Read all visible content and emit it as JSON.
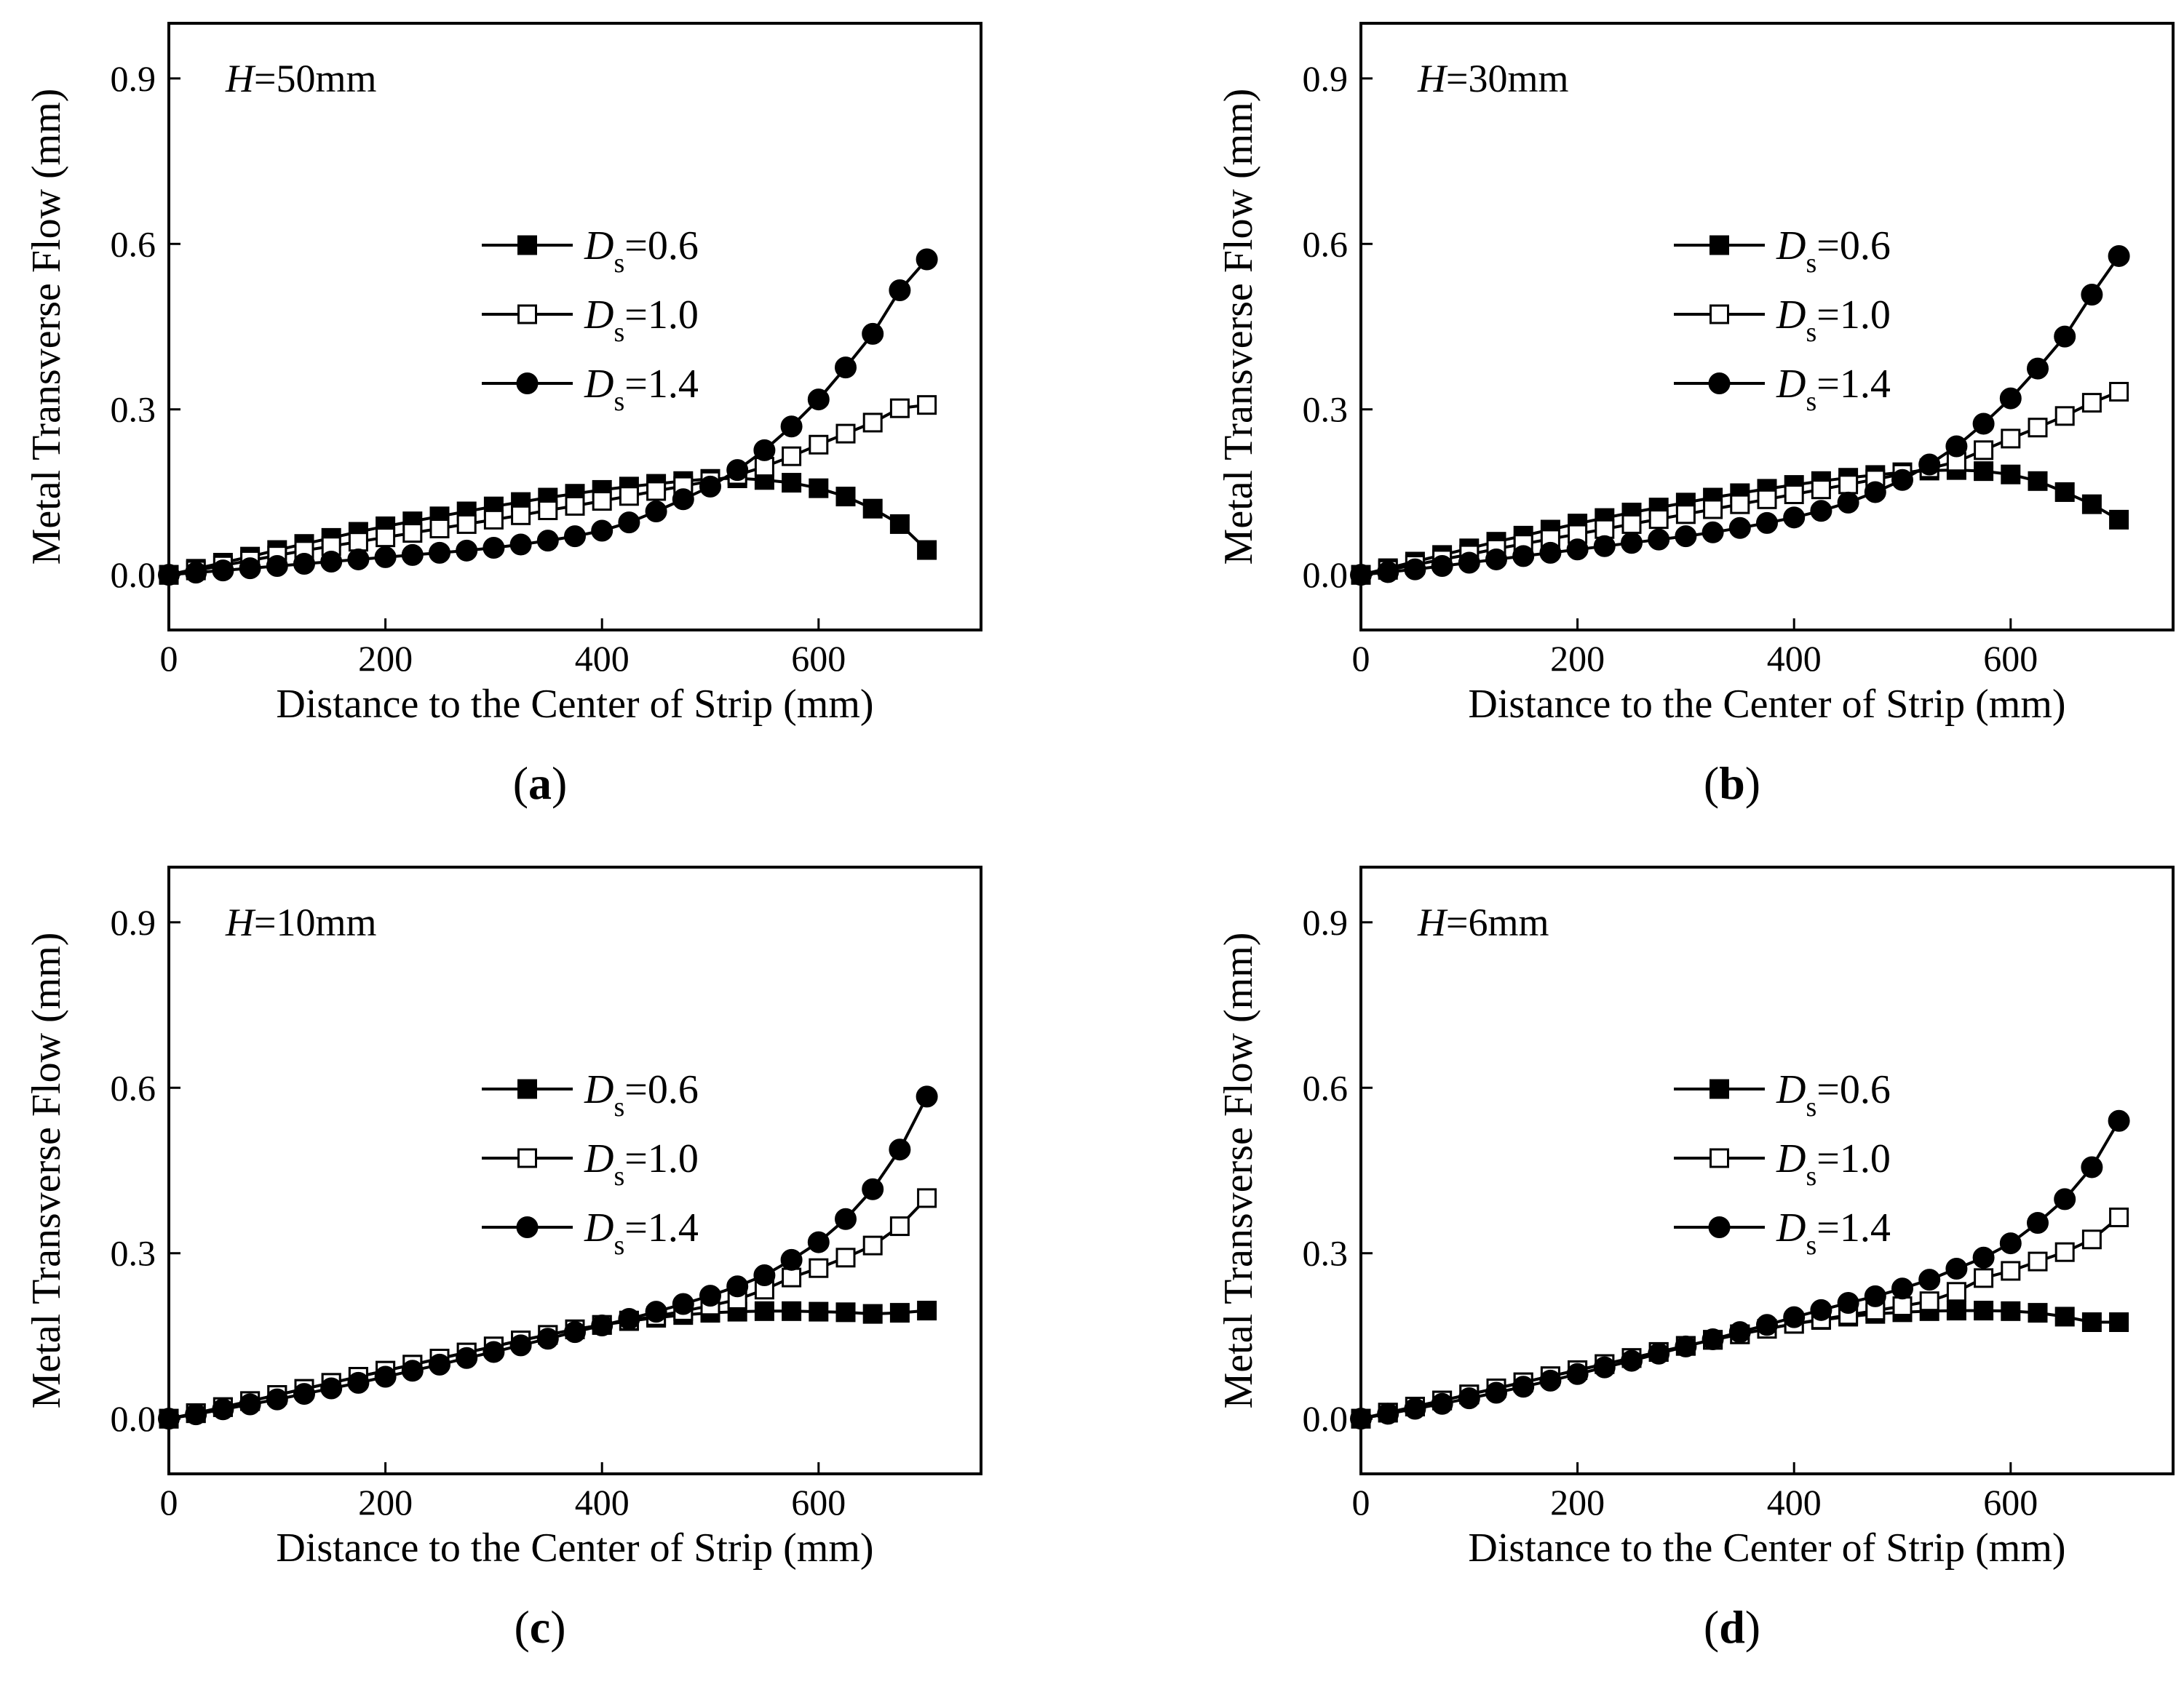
{
  "figure": {
    "x_label": "Distance to the Center of Strip (mm)",
    "y_label": "Metal Transverse Flow (mm)",
    "colors": {
      "ink": "#000000",
      "open_fill": "#ffffff"
    }
  },
  "chart_data": [
    {
      "type": "line",
      "panel_label": "a",
      "annotation": {
        "var": "H",
        "eq": "=50mm"
      },
      "xlabel": "Distance to the Center of Strip (mm)",
      "ylabel": "Metal Transverse Flow (mm)",
      "xlim": [
        0,
        750
      ],
      "ylim": [
        -0.1,
        1.0
      ],
      "xticks": [
        0,
        200,
        400,
        600
      ],
      "yticks": [
        0.0,
        0.3,
        0.6,
        0.9
      ],
      "x": [
        0,
        25,
        50,
        75,
        100,
        125,
        150,
        175,
        200,
        225,
        250,
        275,
        300,
        325,
        350,
        375,
        400,
        425,
        450,
        475,
        500,
        525,
        550,
        575,
        600,
        625,
        650,
        675,
        700
      ],
      "series": [
        {
          "name": "Ds=0.6",
          "sym": "D",
          "sub": "s",
          "val": "=0.6",
          "marker": "square-filled",
          "values": [
            0,
            0.011,
            0.022,
            0.033,
            0.045,
            0.056,
            0.067,
            0.078,
            0.088,
            0.097,
            0.106,
            0.115,
            0.124,
            0.132,
            0.14,
            0.147,
            0.154,
            0.16,
            0.165,
            0.17,
            0.174,
            0.175,
            0.172,
            0.167,
            0.157,
            0.142,
            0.12,
            0.092,
            0.045
          ]
        },
        {
          "name": "Ds=1.0",
          "sym": "D",
          "sub": "s",
          "val": "=1.0",
          "marker": "square-open",
          "values": [
            0,
            0.008,
            0.017,
            0.026,
            0.035,
            0.044,
            0.052,
            0.06,
            0.068,
            0.076,
            0.084,
            0.092,
            0.1,
            0.108,
            0.117,
            0.125,
            0.134,
            0.143,
            0.152,
            0.161,
            0.17,
            0.181,
            0.196,
            0.215,
            0.236,
            0.256,
            0.276,
            0.302,
            0.308
          ]
        },
        {
          "name": "Ds=1.4",
          "sym": "D",
          "sub": "s",
          "val": "=1.4",
          "marker": "circle-filled",
          "values": [
            0,
            0.004,
            0.008,
            0.012,
            0.016,
            0.02,
            0.024,
            0.028,
            0.032,
            0.036,
            0.04,
            0.044,
            0.049,
            0.055,
            0.062,
            0.07,
            0.08,
            0.095,
            0.115,
            0.137,
            0.16,
            0.19,
            0.226,
            0.269,
            0.318,
            0.376,
            0.437,
            0.516,
            0.572
          ]
        }
      ]
    },
    {
      "type": "line",
      "panel_label": "b",
      "annotation": {
        "var": "H",
        "eq": "=30mm"
      },
      "xlabel": "Distance to the Center of Strip (mm)",
      "ylabel": "Metal Transverse Flow (mm)",
      "xlim": [
        0,
        750
      ],
      "ylim": [
        -0.1,
        1.0
      ],
      "xticks": [
        0,
        200,
        400,
        600
      ],
      "yticks": [
        0.0,
        0.3,
        0.6,
        0.9
      ],
      "x": [
        0,
        25,
        50,
        75,
        100,
        125,
        150,
        175,
        200,
        225,
        250,
        275,
        300,
        325,
        350,
        375,
        400,
        425,
        450,
        475,
        500,
        525,
        550,
        575,
        600,
        625,
        650,
        675,
        700
      ],
      "series": [
        {
          "name": "Ds=0.6",
          "sym": "D",
          "sub": "s",
          "val": "=0.6",
          "marker": "square-filled",
          "values": [
            0,
            0.012,
            0.024,
            0.036,
            0.048,
            0.06,
            0.071,
            0.082,
            0.093,
            0.103,
            0.113,
            0.122,
            0.131,
            0.14,
            0.148,
            0.156,
            0.163,
            0.17,
            0.176,
            0.181,
            0.186,
            0.189,
            0.19,
            0.188,
            0.182,
            0.17,
            0.15,
            0.128,
            0.1
          ]
        },
        {
          "name": "Ds=1.0",
          "sym": "D",
          "sub": "s",
          "val": "=1.0",
          "marker": "square-open",
          "values": [
            0,
            0.009,
            0.018,
            0.028,
            0.037,
            0.047,
            0.056,
            0.065,
            0.074,
            0.083,
            0.092,
            0.101,
            0.11,
            0.119,
            0.128,
            0.137,
            0.146,
            0.155,
            0.164,
            0.173,
            0.183,
            0.193,
            0.205,
            0.226,
            0.247,
            0.267,
            0.288,
            0.312,
            0.332
          ]
        },
        {
          "name": "Ds=1.4",
          "sym": "D",
          "sub": "s",
          "val": "=1.4",
          "marker": "circle-filled",
          "values": [
            0,
            0.005,
            0.01,
            0.016,
            0.022,
            0.028,
            0.034,
            0.04,
            0.046,
            0.052,
            0.058,
            0.064,
            0.07,
            0.077,
            0.085,
            0.094,
            0.104,
            0.116,
            0.131,
            0.15,
            0.172,
            0.2,
            0.233,
            0.274,
            0.32,
            0.374,
            0.432,
            0.508,
            0.578
          ]
        }
      ]
    },
    {
      "type": "line",
      "panel_label": "c",
      "annotation": {
        "var": "H",
        "eq": "=10mm"
      },
      "xlabel": "Distance to the Center of Strip (mm)",
      "ylabel": "Metal Transverse Flow (mm)",
      "xlim": [
        0,
        750
      ],
      "ylim": [
        -0.1,
        1.0
      ],
      "xticks": [
        0,
        200,
        400,
        600
      ],
      "yticks": [
        0.0,
        0.3,
        0.6,
        0.9
      ],
      "x": [
        0,
        25,
        50,
        75,
        100,
        125,
        150,
        175,
        200,
        225,
        250,
        275,
        300,
        325,
        350,
        375,
        400,
        425,
        450,
        475,
        500,
        525,
        550,
        575,
        600,
        625,
        650,
        675,
        700
      ],
      "series": [
        {
          "name": "Ds=0.6",
          "sym": "D",
          "sub": "s",
          "val": "=0.6",
          "marker": "square-filled",
          "values": [
            0,
            0.01,
            0.021,
            0.032,
            0.043,
            0.054,
            0.065,
            0.076,
            0.087,
            0.098,
            0.109,
            0.12,
            0.131,
            0.142,
            0.152,
            0.162,
            0.17,
            0.177,
            0.183,
            0.188,
            0.192,
            0.194,
            0.195,
            0.195,
            0.194,
            0.193,
            0.19,
            0.192,
            0.196
          ]
        },
        {
          "name": "Ds=1.0",
          "sym": "D",
          "sub": "s",
          "val": "=1.0",
          "marker": "square-open",
          "values": [
            0,
            0.01,
            0.021,
            0.032,
            0.043,
            0.054,
            0.065,
            0.076,
            0.087,
            0.098,
            0.109,
            0.12,
            0.131,
            0.142,
            0.152,
            0.162,
            0.17,
            0.178,
            0.186,
            0.195,
            0.205,
            0.216,
            0.234,
            0.256,
            0.273,
            0.292,
            0.314,
            0.349,
            0.4
          ]
        },
        {
          "name": "Ds=1.4",
          "sym": "D",
          "sub": "s",
          "val": "=1.4",
          "marker": "circle-filled",
          "values": [
            0,
            0.008,
            0.017,
            0.026,
            0.035,
            0.045,
            0.055,
            0.065,
            0.076,
            0.087,
            0.098,
            0.11,
            0.121,
            0.133,
            0.145,
            0.157,
            0.169,
            0.181,
            0.194,
            0.208,
            0.223,
            0.24,
            0.26,
            0.288,
            0.32,
            0.362,
            0.416,
            0.488,
            0.584
          ]
        }
      ]
    },
    {
      "type": "line",
      "panel_label": "d",
      "annotation": {
        "var": "H",
        "eq": "=6mm"
      },
      "xlabel": "Distance to the Center of Strip (mm)",
      "ylabel": "Metal Transverse Flow (mm)",
      "xlim": [
        0,
        750
      ],
      "ylim": [
        -0.1,
        1.0
      ],
      "xticks": [
        0,
        200,
        400,
        600
      ],
      "yticks": [
        0.0,
        0.3,
        0.6,
        0.9
      ],
      "x": [
        0,
        25,
        50,
        75,
        100,
        125,
        150,
        175,
        200,
        225,
        250,
        275,
        300,
        325,
        350,
        375,
        400,
        425,
        450,
        475,
        500,
        525,
        550,
        575,
        600,
        625,
        650,
        675,
        700
      ],
      "series": [
        {
          "name": "Ds=0.6",
          "sym": "D",
          "sub": "s",
          "val": "=0.6",
          "marker": "square-filled",
          "values": [
            0,
            0.011,
            0.022,
            0.033,
            0.044,
            0.055,
            0.066,
            0.077,
            0.088,
            0.099,
            0.11,
            0.121,
            0.132,
            0.143,
            0.153,
            0.163,
            0.172,
            0.179,
            0.185,
            0.19,
            0.193,
            0.195,
            0.196,
            0.196,
            0.195,
            0.192,
            0.185,
            0.175,
            0.175
          ]
        },
        {
          "name": "Ds=1.0",
          "sym": "D",
          "sub": "s",
          "val": "=1.0",
          "marker": "square-open",
          "values": [
            0,
            0.011,
            0.022,
            0.033,
            0.044,
            0.055,
            0.066,
            0.077,
            0.088,
            0.099,
            0.11,
            0.121,
            0.132,
            0.143,
            0.153,
            0.163,
            0.172,
            0.18,
            0.188,
            0.196,
            0.204,
            0.213,
            0.23,
            0.255,
            0.268,
            0.285,
            0.302,
            0.325,
            0.365
          ]
        },
        {
          "name": "Ds=1.4",
          "sym": "D",
          "sub": "s",
          "val": "=1.4",
          "marker": "circle-filled",
          "values": [
            0,
            0.009,
            0.018,
            0.027,
            0.037,
            0.047,
            0.058,
            0.069,
            0.081,
            0.093,
            0.105,
            0.118,
            0.131,
            0.144,
            0.157,
            0.17,
            0.184,
            0.197,
            0.21,
            0.222,
            0.236,
            0.252,
            0.272,
            0.292,
            0.318,
            0.355,
            0.398,
            0.456,
            0.54
          ]
        }
      ]
    }
  ]
}
